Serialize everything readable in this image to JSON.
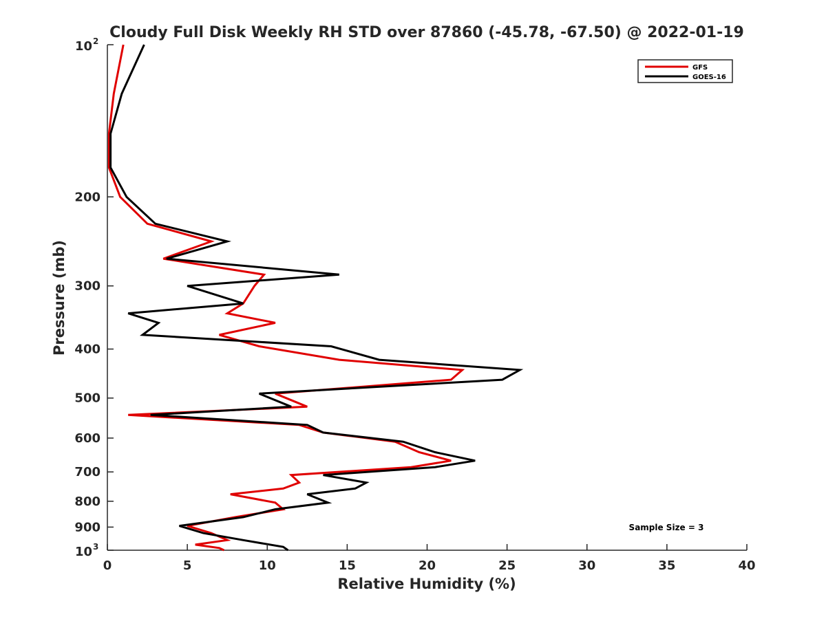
{
  "chart_data": {
    "type": "line",
    "title": "Cloudy Full Disk Weekly RH STD over 87860 (-45.78, -67.50) @ 2022-01-19",
    "xlabel": "Relative Humidity (%)",
    "ylabel": "Pressure (mb)",
    "xlim": [
      0,
      40
    ],
    "ylim": [
      100,
      1000
    ],
    "y_scale": "log",
    "y_reversed": true,
    "grid": false,
    "legend_position": "top-right",
    "x_ticks": [
      "0",
      "5",
      "10",
      "15",
      "20",
      "25",
      "30",
      "35",
      "40"
    ],
    "y_ticks": [
      {
        "value": 100,
        "base": "10",
        "exp": "2"
      },
      {
        "value": 200,
        "label": "200"
      },
      {
        "value": 300,
        "label": "300"
      },
      {
        "value": 400,
        "label": "400"
      },
      {
        "value": 500,
        "label": "500"
      },
      {
        "value": 600,
        "label": "600"
      },
      {
        "value": 700,
        "label": "700"
      },
      {
        "value": 800,
        "label": "800"
      },
      {
        "value": 900,
        "label": "900"
      },
      {
        "value": 1000,
        "base": "10",
        "exp": "3"
      }
    ],
    "annotation": "Sample Size = 3",
    "series": [
      {
        "name": "GFS",
        "color": "#e00000",
        "points": [
          [
            1.0,
            100
          ],
          [
            0.4,
            125
          ],
          [
            0.1,
            150
          ],
          [
            0.1,
            175
          ],
          [
            0.8,
            200
          ],
          [
            2.5,
            226
          ],
          [
            6.5,
            245
          ],
          [
            3.5,
            265
          ],
          [
            9.8,
            285
          ],
          [
            9.2,
            300
          ],
          [
            8.5,
            325
          ],
          [
            7.5,
            340
          ],
          [
            10.5,
            355
          ],
          [
            7.0,
            375
          ],
          [
            9.5,
            395
          ],
          [
            14.5,
            420
          ],
          [
            22.2,
            440
          ],
          [
            21.5,
            460
          ],
          [
            10.5,
            490
          ],
          [
            12.5,
            520
          ],
          [
            1.3,
            540
          ],
          [
            12.0,
            565
          ],
          [
            13.5,
            585
          ],
          [
            18.0,
            610
          ],
          [
            19.5,
            640
          ],
          [
            21.5,
            665
          ],
          [
            19.0,
            685
          ],
          [
            11.5,
            710
          ],
          [
            12.0,
            735
          ],
          [
            11.0,
            755
          ],
          [
            7.7,
            775
          ],
          [
            10.5,
            805
          ],
          [
            11.0,
            830
          ],
          [
            8.0,
            860
          ],
          [
            5.0,
            895
          ],
          [
            6.5,
            925
          ],
          [
            7.5,
            955
          ],
          [
            5.5,
            975
          ],
          [
            7.0,
            990
          ],
          [
            7.3,
            1000
          ]
        ]
      },
      {
        "name": "GOES-16",
        "color": "#000000",
        "points": [
          [
            2.3,
            100
          ],
          [
            0.9,
            125
          ],
          [
            0.2,
            150
          ],
          [
            0.2,
            175
          ],
          [
            1.2,
            200
          ],
          [
            3.0,
            226
          ],
          [
            7.5,
            245
          ],
          [
            3.7,
            265
          ],
          [
            14.5,
            285
          ],
          [
            5.0,
            300
          ],
          [
            8.5,
            325
          ],
          [
            1.3,
            340
          ],
          [
            3.2,
            355
          ],
          [
            2.2,
            375
          ],
          [
            14.0,
            395
          ],
          [
            17.0,
            420
          ],
          [
            25.8,
            440
          ],
          [
            24.7,
            460
          ],
          [
            9.5,
            490
          ],
          [
            11.5,
            520
          ],
          [
            2.7,
            540
          ],
          [
            12.5,
            565
          ],
          [
            13.5,
            585
          ],
          [
            18.5,
            610
          ],
          [
            20.5,
            640
          ],
          [
            23.0,
            665
          ],
          [
            20.5,
            685
          ],
          [
            13.5,
            710
          ],
          [
            16.2,
            735
          ],
          [
            15.5,
            755
          ],
          [
            12.5,
            775
          ],
          [
            13.8,
            805
          ],
          [
            10.5,
            830
          ],
          [
            8.5,
            860
          ],
          [
            4.5,
            895
          ],
          [
            6.0,
            925
          ],
          [
            8.5,
            955
          ],
          [
            11.0,
            985
          ],
          [
            11.3,
            1000
          ]
        ]
      }
    ]
  }
}
